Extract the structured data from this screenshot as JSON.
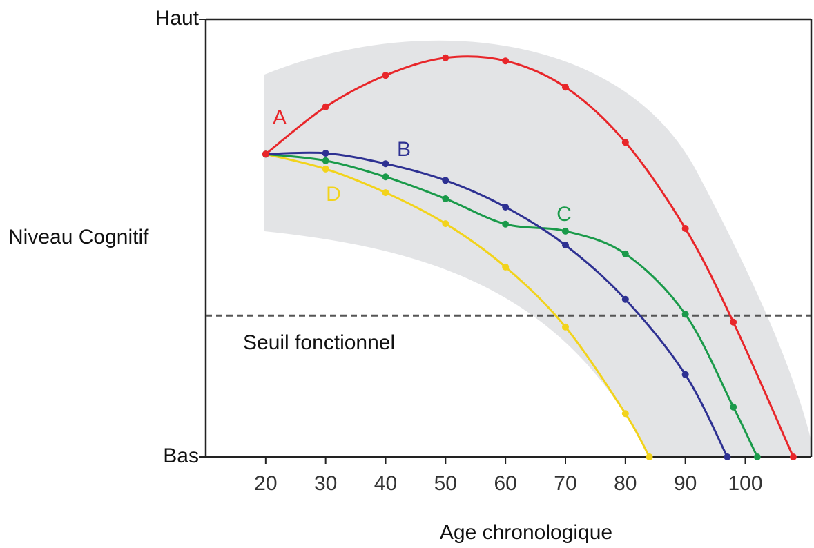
{
  "chart_data": {
    "type": "line",
    "xlabel": "Age chronologique",
    "ylabel": "Niveau Cognitif",
    "xlim": [
      10,
      111
    ],
    "xticks": [
      20,
      30,
      40,
      50,
      60,
      70,
      80,
      90,
      100
    ],
    "ylim": [
      0,
      100
    ],
    "yticks": [
      {
        "value": 0,
        "label": "Bas"
      },
      {
        "value": 100,
        "label": "Haut"
      }
    ],
    "series": [
      {
        "name": "A",
        "color": "#e8262a",
        "x": [
          20,
          30,
          40,
          50,
          60,
          70,
          80,
          90,
          98,
          108
        ],
        "values": [
          69.2,
          80.0,
          87.2,
          91.2,
          90.5,
          84.5,
          71.9,
          52.2,
          30.8,
          0
        ]
      },
      {
        "name": "B",
        "color": "#2e3192",
        "x": [
          20,
          30,
          40,
          50,
          60,
          70,
          80,
          90,
          97
        ],
        "values": [
          69.2,
          69.4,
          67.0,
          63.2,
          57.1,
          48.4,
          36.0,
          18.8,
          0
        ]
      },
      {
        "name": "C",
        "color": "#1a9a4a",
        "x": [
          20,
          30,
          40,
          50,
          60,
          70,
          80,
          90,
          98,
          102
        ],
        "values": [
          69.2,
          67.7,
          64.0,
          59.0,
          53.2,
          51.6,
          46.4,
          32.6,
          11.4,
          0
        ]
      },
      {
        "name": "D",
        "color": "#f2d31b",
        "x": [
          20,
          30,
          40,
          50,
          60,
          70,
          80,
          84
        ],
        "values": [
          69.2,
          65.8,
          60.4,
          53.3,
          43.4,
          29.7,
          9.9,
          0
        ]
      }
    ],
    "threshold": {
      "value": 32.3,
      "label": "Seuil fonctionnel"
    }
  }
}
